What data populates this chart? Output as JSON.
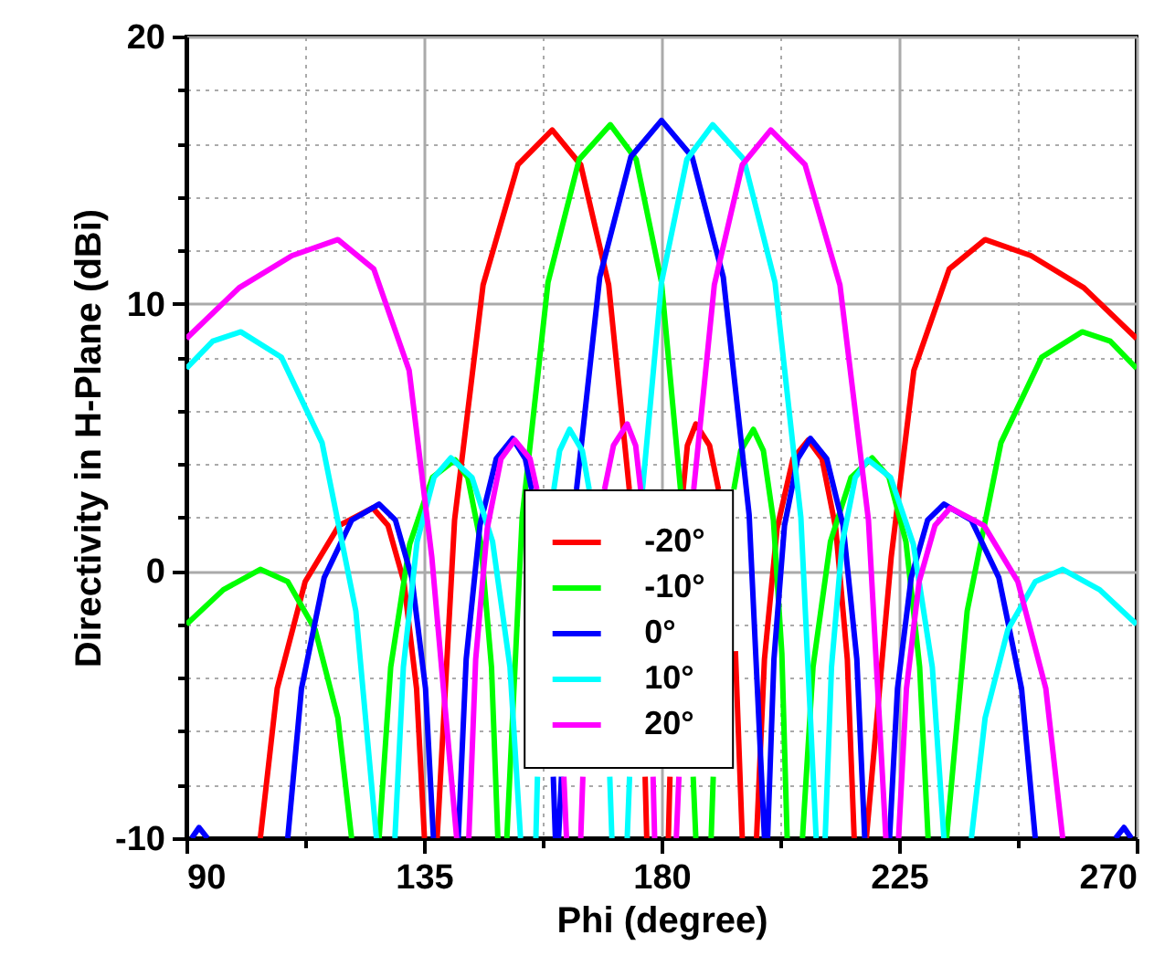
{
  "chart_data": {
    "type": "line",
    "xlabel": "Phi (degree)",
    "ylabel": "Directivity in H-Plane (dBi)",
    "xlim": [
      90,
      270
    ],
    "ylim": [
      -10,
      20
    ],
    "xticks": [
      90,
      {
        "value": 112.5,
        "label": null
      },
      135,
      {
        "value": 157.5,
        "label": null
      },
      180,
      {
        "value": 202.5,
        "label": null
      },
      225,
      {
        "value": 247.5,
        "label": null
      },
      270
    ],
    "yticks": [
      -10,
      {
        "value": -8,
        "label": null
      },
      {
        "value": -6,
        "label": null
      },
      {
        "value": -4,
        "label": null
      },
      {
        "value": -2,
        "label": null
      },
      0,
      {
        "value": 2,
        "label": null
      },
      {
        "value": 4,
        "label": null
      },
      {
        "value": 6,
        "label": null
      },
      {
        "value": 8,
        "label": null
      },
      10,
      {
        "value": 12,
        "label": null
      },
      {
        "value": 14,
        "label": null
      },
      {
        "value": 16,
        "label": null
      },
      {
        "value": 18,
        "label": null
      },
      20
    ],
    "grid": true,
    "legend": "bottom",
    "line_style": "solid",
    "series": [
      {
        "name": "-20°",
        "color": "#ff0000",
        "x": [
          104,
          107.2,
          112.5,
          118.9,
          125.3,
          128.2,
          131.2,
          133.6,
          135.1,
          136.3,
          137.5,
          140.8,
          146.2,
          152.8,
          159.3,
          164.7,
          170.0,
          173.9,
          175.4,
          176.9,
          177.2,
          179.2,
          181.3,
          181.6,
          182.8,
          184.1,
          184.9,
          186.5,
          189.1,
          190.8,
          192,
          194.0,
          195.3,
          196.6,
          198,
          199.5,
          201.9,
          204.9,
          207.8,
          210.4,
          213,
          215.2,
          216.5,
          217.6,
          218.8,
          223.5,
          227.8,
          234.5,
          241.3,
          250,
          260,
          270
        ],
        "values": [
          -10,
          -4.4,
          -0.4,
          1.7,
          2.36,
          1.7,
          -0.4,
          -4.4,
          -10,
          null,
          -10,
          1.9,
          10.7,
          15.2,
          16.5,
          15.2,
          10.7,
          3.05,
          null,
          -7.7,
          -10,
          null,
          -10,
          -7.7,
          null,
          3.05,
          4.7,
          5.5,
          4.7,
          3.05,
          null,
          -3.0,
          -10,
          null,
          -10,
          -3.3,
          1.6,
          4.2,
          4.9,
          4.2,
          1.6,
          -3.3,
          -10,
          null,
          -10,
          0.5,
          7.5,
          11.3,
          12.4,
          11.8,
          10.6,
          8.7
        ]
      },
      {
        "name": "-10°",
        "color": "#00ff00",
        "x": [
          90,
          97,
          104,
          109.2,
          114.4,
          118.7,
          121.3,
          124,
          126.5,
          128.7,
          132.3,
          136.6,
          140.9,
          143.3,
          145.8,
          147.8,
          149,
          149.8,
          150.7,
          153.6,
          158.5,
          164.4,
          170.3,
          175.2,
          180.0,
          183.6,
          185,
          186.0,
          186.5,
          188,
          189.4,
          189.8,
          191.5,
          193.7,
          195.0,
          197.4,
          199.3,
          201.2,
          202.8,
          203.8,
          205.2,
          206.7,
          208.7,
          212.0,
          215.9,
          219.9,
          223.1,
          226.3,
          228.9,
          230.5,
          232.2,
          234,
          237.9,
          244.3,
          252.0,
          259.7,
          265,
          270
        ],
        "values": [
          -2.0,
          -0.7,
          0.06,
          -0.4,
          -2.2,
          -5.5,
          -10,
          null,
          -10,
          -3.6,
          1.0,
          3.5,
          4.16,
          3.5,
          1.0,
          -3.6,
          -10,
          null,
          -10,
          2.0,
          10.8,
          15.4,
          16.7,
          15.4,
          10.8,
          3.05,
          null,
          -7.7,
          -10,
          null,
          -10,
          -7.7,
          null,
          3.05,
          4.5,
          5.3,
          4.5,
          1.9,
          -3.1,
          -10,
          null,
          -10,
          -3.6,
          1.1,
          3.5,
          4.23,
          3.5,
          1.1,
          -3.6,
          -10,
          null,
          -10,
          -1.5,
          4.8,
          8.0,
          8.95,
          8.6,
          7.58
        ]
      },
      {
        "name": "0°",
        "color": "#0000ff",
        "x": [
          91,
          92.4,
          94,
          101,
          109.2,
          111.8,
          116.1,
          121.3,
          126.5,
          129.6,
          132.7,
          135.3,
          136.8,
          139,
          141.5,
          143.0,
          145.6,
          148.7,
          151.8,
          154.2,
          155.4,
          157.5,
          159.5,
          159.9,
          160.2,
          160.5,
          161.05,
          162.5,
          163.9,
          168.3,
          174.2,
          180,
          185.8,
          191.7,
          196.6,
          199.5,
          199.8,
          200.1,
          201.3,
          203.3,
          205.8,
          208.2,
          211.3,
          214.4,
          217.0,
          218.5,
          221,
          223.2,
          224.7,
          227.3,
          230.4,
          233.5,
          238.7,
          243.9,
          248.2,
          250.8,
          259,
          266,
          267.6,
          269
        ],
        "values": [
          -10,
          -9.6,
          -10,
          null,
          -10,
          -4.4,
          -0.25,
          1.9,
          2.5,
          1.9,
          -0.25,
          -4.4,
          -10,
          null,
          -10,
          -3.3,
          1.7,
          4.2,
          4.96,
          4.2,
          3.05,
          null,
          -7.7,
          -10,
          null,
          -10,
          -7.7,
          null,
          3.05,
          11.0,
          15.5,
          16.86,
          15.5,
          11.0,
          2.1,
          -10,
          null,
          -10,
          -3.3,
          1.7,
          4.2,
          4.96,
          4.2,
          1.7,
          -3.3,
          -10,
          null,
          -10,
          -4.4,
          -0.25,
          1.9,
          2.5,
          1.9,
          -0.25,
          -4.4,
          -10,
          null,
          -10,
          -9.6,
          -10
        ]
      },
      {
        "name": "10°",
        "color": "#00ffff",
        "x": [
          90,
          95,
          100.3,
          108.0,
          115.7,
          122.1,
          126,
          127.8,
          129.5,
          131.1,
          133.7,
          136.9,
          140.1,
          144.1,
          148.0,
          151.3,
          153.3,
          154.8,
          156.2,
          156.5,
          158,
          159.6,
          160.7,
          162.6,
          165.0,
          166.3,
          168,
          170.2,
          170.6,
          172,
          173.5,
          173.95,
          175,
          176.4,
          180.0,
          184.8,
          189.7,
          195.6,
          201.5,
          206.4,
          209.3,
          210.2,
          211,
          212.2,
          214.2,
          216.7,
          219.1,
          223.4,
          227.7,
          231.3,
          233.5,
          236,
          238.7,
          241.3,
          245.6,
          250.8,
          256,
          263,
          270
        ],
        "values": [
          7.58,
          8.6,
          8.95,
          8.0,
          4.8,
          -1.5,
          -10,
          null,
          -10,
          -3.6,
          1.1,
          3.5,
          4.23,
          3.5,
          1.1,
          -3.6,
          -10,
          null,
          -10,
          -7.7,
          null,
          3.05,
          4.5,
          5.3,
          4.5,
          3.05,
          null,
          -7.7,
          -10,
          null,
          -10,
          -7.7,
          null,
          3.05,
          10.8,
          15.4,
          16.7,
          15.4,
          10.8,
          2.0,
          -10,
          null,
          -10,
          -3.6,
          1.0,
          3.5,
          4.16,
          3.5,
          1.0,
          -3.6,
          -10,
          null,
          -10,
          -5.5,
          -2.2,
          -0.4,
          0.06,
          -0.7,
          -2.0
        ]
      },
      {
        "name": "20°",
        "color": "#ff00ff",
        "x": [
          90,
          100,
          110,
          118.7,
          125.5,
          132.2,
          136.5,
          141.2,
          142.4,
          143.5,
          144.8,
          147.0,
          149.6,
          152.2,
          155.1,
          156.4,
          159,
          161.5,
          162,
          163.4,
          164.7,
          165.1,
          167,
          169.2,
          170.9,
          173.5,
          175.1,
          176.05,
          177,
          178.4,
          178.7,
          180.8,
          182.8,
          183.3,
          184.5,
          186.1,
          190.0,
          195.3,
          200.7,
          207.2,
          213.8,
          219.2,
          222.5,
          223.7,
          224.9,
          226.4,
          228.8,
          231.8,
          234.7,
          241.1,
          247.5,
          252.8,
          256
        ],
        "values": [
          8.7,
          10.6,
          11.8,
          12.4,
          11.3,
          7.5,
          0.5,
          -10,
          null,
          -10,
          -3.3,
          1.6,
          4.2,
          4.9,
          4.2,
          3.05,
          null,
          -7.7,
          -10,
          null,
          -10,
          -7.7,
          null,
          3.05,
          4.7,
          5.5,
          4.7,
          3.05,
          null,
          -7.7,
          -10,
          null,
          -10,
          -7.7,
          null,
          3.05,
          10.7,
          15.2,
          16.5,
          15.2,
          10.7,
          1.9,
          -10,
          null,
          -10,
          -4.4,
          -0.4,
          1.7,
          2.36,
          1.7,
          -0.4,
          -4.4,
          -10
        ]
      }
    ]
  }
}
